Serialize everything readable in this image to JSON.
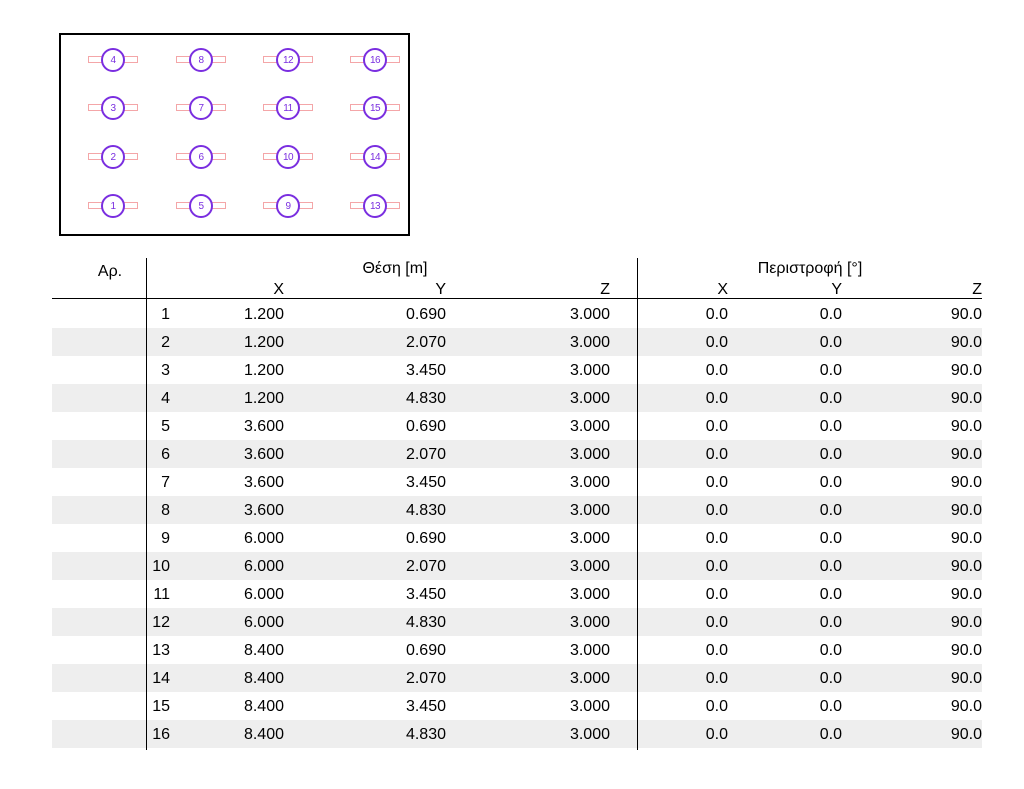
{
  "plan": {
    "luminaires": [
      {
        "id": "4"
      },
      {
        "id": "8"
      },
      {
        "id": "12"
      },
      {
        "id": "16"
      },
      {
        "id": "3"
      },
      {
        "id": "7"
      },
      {
        "id": "11"
      },
      {
        "id": "15"
      },
      {
        "id": "2"
      },
      {
        "id": "6"
      },
      {
        "id": "10"
      },
      {
        "id": "14"
      },
      {
        "id": "1"
      },
      {
        "id": "5"
      },
      {
        "id": "9"
      },
      {
        "id": "13"
      }
    ],
    "colors": {
      "ring": "#7a2ee0",
      "bar": "#f4a6a8"
    }
  },
  "table": {
    "headers": {
      "number": "Αρ.",
      "position": "Θέση [m]",
      "rotation": "Περιστροφή [°]",
      "pos_x": "X",
      "pos_y": "Y",
      "pos_z": "Z",
      "rot_x": "X",
      "rot_y": "Y",
      "rot_z": "Z"
    },
    "rows": [
      {
        "n": "1",
        "x": "1.200",
        "y": "0.690",
        "z": "3.000",
        "rx": "0.0",
        "ry": "0.0",
        "rz": "90.0"
      },
      {
        "n": "2",
        "x": "1.200",
        "y": "2.070",
        "z": "3.000",
        "rx": "0.0",
        "ry": "0.0",
        "rz": "90.0"
      },
      {
        "n": "3",
        "x": "1.200",
        "y": "3.450",
        "z": "3.000",
        "rx": "0.0",
        "ry": "0.0",
        "rz": "90.0"
      },
      {
        "n": "4",
        "x": "1.200",
        "y": "4.830",
        "z": "3.000",
        "rx": "0.0",
        "ry": "0.0",
        "rz": "90.0"
      },
      {
        "n": "5",
        "x": "3.600",
        "y": "0.690",
        "z": "3.000",
        "rx": "0.0",
        "ry": "0.0",
        "rz": "90.0"
      },
      {
        "n": "6",
        "x": "3.600",
        "y": "2.070",
        "z": "3.000",
        "rx": "0.0",
        "ry": "0.0",
        "rz": "90.0"
      },
      {
        "n": "7",
        "x": "3.600",
        "y": "3.450",
        "z": "3.000",
        "rx": "0.0",
        "ry": "0.0",
        "rz": "90.0"
      },
      {
        "n": "8",
        "x": "3.600",
        "y": "4.830",
        "z": "3.000",
        "rx": "0.0",
        "ry": "0.0",
        "rz": "90.0"
      },
      {
        "n": "9",
        "x": "6.000",
        "y": "0.690",
        "z": "3.000",
        "rx": "0.0",
        "ry": "0.0",
        "rz": "90.0"
      },
      {
        "n": "10",
        "x": "6.000",
        "y": "2.070",
        "z": "3.000",
        "rx": "0.0",
        "ry": "0.0",
        "rz": "90.0"
      },
      {
        "n": "11",
        "x": "6.000",
        "y": "3.450",
        "z": "3.000",
        "rx": "0.0",
        "ry": "0.0",
        "rz": "90.0"
      },
      {
        "n": "12",
        "x": "6.000",
        "y": "4.830",
        "z": "3.000",
        "rx": "0.0",
        "ry": "0.0",
        "rz": "90.0"
      },
      {
        "n": "13",
        "x": "8.400",
        "y": "0.690",
        "z": "3.000",
        "rx": "0.0",
        "ry": "0.0",
        "rz": "90.0"
      },
      {
        "n": "14",
        "x": "8.400",
        "y": "2.070",
        "z": "3.000",
        "rx": "0.0",
        "ry": "0.0",
        "rz": "90.0"
      },
      {
        "n": "15",
        "x": "8.400",
        "y": "3.450",
        "z": "3.000",
        "rx": "0.0",
        "ry": "0.0",
        "rz": "90.0"
      },
      {
        "n": "16",
        "x": "8.400",
        "y": "4.830",
        "z": "3.000",
        "rx": "0.0",
        "ry": "0.0",
        "rz": "90.0"
      }
    ]
  }
}
